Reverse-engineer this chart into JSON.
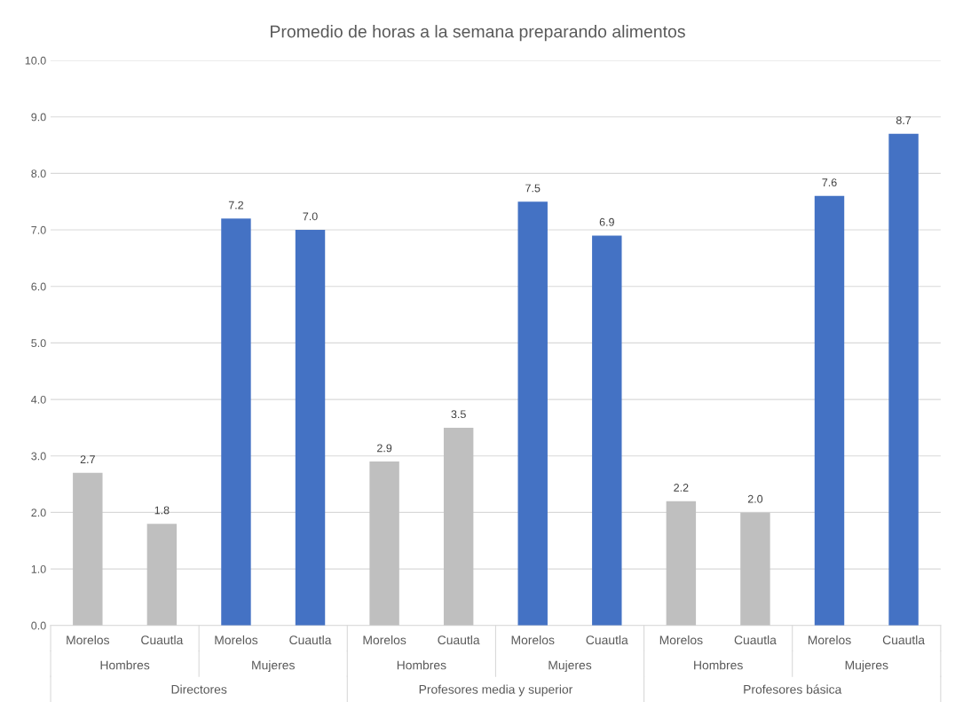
{
  "chart_data": {
    "type": "bar",
    "title": "Promedio de horas a la semana preparando alimentos",
    "categories": [
      "Morelos",
      "Cuautla",
      "Morelos",
      "Cuautla",
      "Morelos",
      "Cuautla",
      "Morelos",
      "Cuautla",
      "Morelos",
      "Cuautla",
      "Morelos",
      "Cuautla"
    ],
    "values": [
      2.7,
      1.8,
      7.2,
      7.0,
      2.9,
      3.5,
      7.5,
      6.9,
      2.2,
      2.0,
      7.6,
      8.7
    ],
    "value_labels": [
      "2.7",
      "1.8",
      "7.2",
      "7.0",
      "2.9",
      "3.5",
      "7.5",
      "6.9",
      "2.2",
      "2.0",
      "7.6",
      "8.7"
    ],
    "colors": [
      "#bfbfbf",
      "#bfbfbf",
      "#4472c4",
      "#4472c4",
      "#bfbfbf",
      "#bfbfbf",
      "#4472c4",
      "#4472c4",
      "#bfbfbf",
      "#bfbfbf",
      "#4472c4",
      "#4472c4"
    ],
    "annotations": [
      "Hombres",
      "Mujeres",
      "Hombres",
      "Mujeres",
      "Hombres",
      "Mujeres",
      "Directores",
      "Profesores media y superior",
      "Profesores básica"
    ],
    "ylim": [
      0,
      10
    ],
    "yticks": [
      {
        "value": 0,
        "label": "0.0"
      },
      {
        "value": 1,
        "label": "1.0"
      },
      {
        "value": 2,
        "label": "2.0"
      },
      {
        "value": 3,
        "label": "3.0"
      },
      {
        "value": 4,
        "label": "4.0"
      },
      {
        "value": 5,
        "label": "5.0"
      },
      {
        "value": 6,
        "label": "6.0"
      },
      {
        "value": 7,
        "label": "7.0"
      },
      {
        "value": 8,
        "label": "8.0"
      },
      {
        "value": 9,
        "label": "9.0"
      },
      {
        "value": 10,
        "label": "10.0"
      }
    ],
    "grid": "y"
  }
}
